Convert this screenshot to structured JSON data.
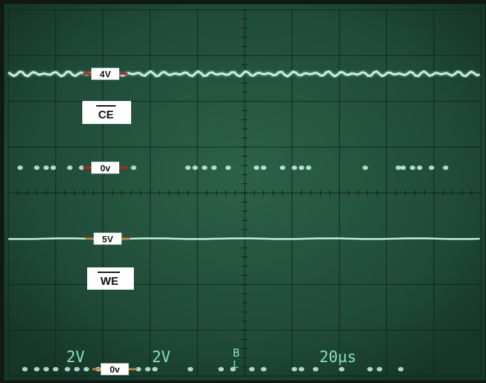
{
  "chart_data": {
    "type": "line",
    "x_divisions": 10,
    "y_divisions": 8,
    "x_range": [
      0,
      10
    ],
    "y_range": [
      0,
      8
    ],
    "grid": true,
    "series": [
      {
        "name": "CE",
        "level_high_div": 6.6,
        "pulses_low_div": 4.55,
        "trace": "noisy-high-with-low-dots"
      },
      {
        "name": "WE",
        "level_high_div": 3.0,
        "pulses_low_div": 0.15,
        "trace": "steady-high-with-low-dots"
      }
    ],
    "markers": [
      {
        "label": "4V",
        "series": "CE",
        "y_div": 6.6,
        "x_div": 2.05
      },
      {
        "label": "0v",
        "series": "CE",
        "y_div": 4.55,
        "x_div": 2.05
      },
      {
        "label": "5V",
        "series": "WE",
        "y_div": 3.0,
        "x_div": 2.1
      },
      {
        "label": "0v",
        "series": "WE",
        "y_div": 0.15,
        "x_div": 2.25
      }
    ],
    "ce_dot_x_div": [
      0.25,
      0.6,
      0.8,
      0.95,
      1.3,
      1.55,
      2.65,
      3.8,
      3.95,
      4.15,
      4.35,
      4.65,
      5.25,
      5.4,
      5.8,
      6.05,
      6.2,
      6.35,
      7.55,
      8.25,
      8.35,
      8.55,
      8.7,
      8.95,
      9.25
    ],
    "we_dot_x_div": [
      0.35,
      0.6,
      0.8,
      1.0,
      1.25,
      1.45,
      1.65,
      1.9,
      2.0,
      2.75,
      2.95,
      3.1,
      3.85,
      4.5,
      4.75,
      5.15,
      5.4,
      6.05,
      6.2,
      6.5,
      7.05,
      7.65,
      7.85,
      8.3
    ]
  },
  "labels": {
    "ce_box": "CE",
    "we_box": "WE",
    "readout_ch1": "2V",
    "readout_ch2": "2V",
    "readout_timebase": "20µs"
  },
  "colors": {
    "screen": "#1f4a37",
    "screen_glow": "#2a5d45",
    "grid": "#0d2219",
    "trace": "#c6f3e3",
    "bezel": "#0f1a15",
    "marker_line": "#b3261e",
    "readout": "#87e0bd"
  }
}
